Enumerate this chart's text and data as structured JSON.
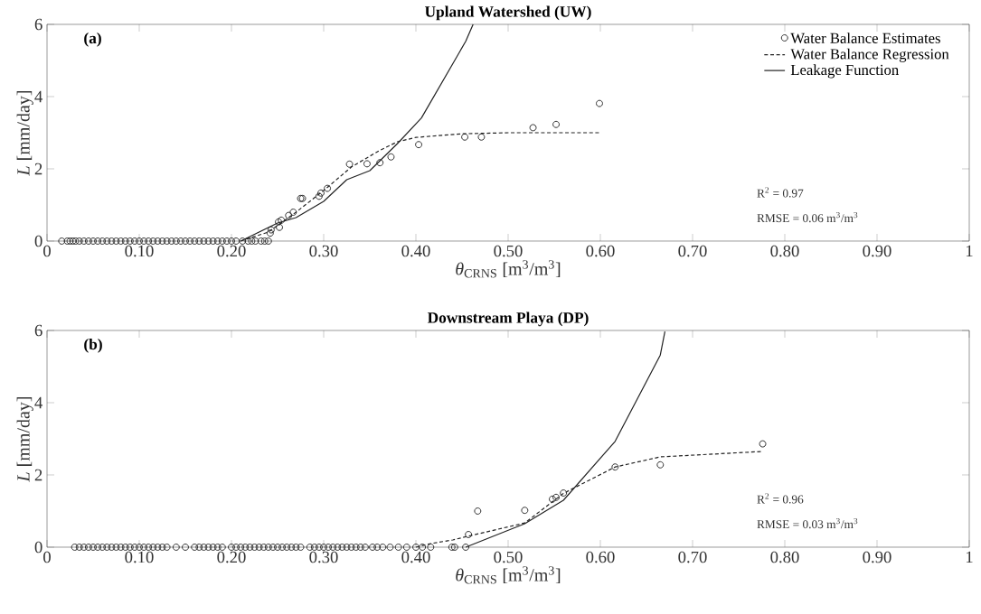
{
  "chart_data": [
    {
      "type": "scatter",
      "title": "Upland Watershed (UW)",
      "xlabel": "*θ*$_{CRNS}$ [m$^{3}$/m$^{3}$]",
      "ylabel": "*L* [mm/day]",
      "xlim": [
        0,
        1
      ],
      "ylim": [
        0,
        6
      ],
      "xticks": [
        0,
        {
          "value": 0.1,
          "label": "0.10"
        },
        {
          "value": 0.2,
          "label": "0.20"
        },
        {
          "value": 0.3,
          "label": "0.30"
        },
        {
          "value": 0.4,
          "label": "0.40"
        },
        {
          "value": 0.5,
          "label": "0.50"
        },
        {
          "value": 0.6,
          "label": "0.60"
        },
        {
          "value": 0.7,
          "label": "0.70"
        },
        {
          "value": 0.8,
          "label": "0.80"
        },
        {
          "value": 0.9,
          "label": "0.90"
        },
        1
      ],
      "yticks": [
        0,
        2,
        4,
        6
      ],
      "legend": "top right",
      "annotations": [
        "(a)",
        "R$^{2}$ = 0.97",
        "RMSE = 0.06 m$^{3}$/m$^{3}$"
      ],
      "series": [
        {
          "name": "Water Balance Estimates",
          "type": "scatter",
          "marker": "circle",
          "color": "#222222",
          "x": [
            0.016,
            0.022,
            0.025,
            0.028,
            0.031,
            0.035,
            0.04,
            0.045,
            0.05,
            0.055,
            0.06,
            0.065,
            0.07,
            0.075,
            0.08,
            0.085,
            0.09,
            0.095,
            0.1,
            0.105,
            0.11,
            0.115,
            0.12,
            0.125,
            0.13,
            0.135,
            0.14,
            0.145,
            0.15,
            0.155,
            0.16,
            0.165,
            0.17,
            0.175,
            0.18,
            0.185,
            0.19,
            0.195,
            0.2,
            0.205,
            0.212,
            0.218,
            0.222,
            0.226,
            0.232,
            0.236,
            0.24,
            0.242,
            0.243,
            0.252,
            0.251,
            0.254,
            0.262,
            0.267,
            0.275,
            0.277,
            0.295,
            0.297,
            0.304,
            0.328,
            0.347,
            0.361,
            0.373,
            0.403,
            0.453,
            0.471,
            0.527,
            0.552,
            0.599
          ],
          "values": [
            0,
            0,
            0,
            0,
            0,
            0,
            0,
            0,
            0,
            0,
            0,
            0,
            0,
            0,
            0,
            0,
            0,
            0,
            0,
            0,
            0,
            0,
            0,
            0,
            0,
            0,
            0,
            0,
            0,
            0,
            0,
            0,
            0,
            0,
            0,
            0,
            0,
            0,
            0,
            0,
            0,
            0,
            0,
            0,
            0,
            0,
            0,
            0.22,
            0.31,
            0.38,
            0.53,
            0.58,
            0.71,
            0.8,
            1.18,
            1.18,
            1.24,
            1.33,
            1.46,
            2.13,
            2.14,
            2.17,
            2.33,
            2.67,
            2.88,
            2.88,
            3.14,
            3.23,
            3.81
          ]
        },
        {
          "name": "Water Balance Regression",
          "type": "line",
          "marker": "none",
          "line_style": "dashed",
          "color": "#222222",
          "x": [
            0.21,
            0.24,
            0.27,
            0.3,
            0.33,
            0.36,
            0.38,
            0.4,
            0.45,
            0.5,
            0.6
          ],
          "values": [
            0,
            0.25,
            0.8,
            1.4,
            2.05,
            2.5,
            2.75,
            2.87,
            2.97,
            3.0,
            3.0
          ]
        },
        {
          "name": "Leakage Function",
          "type": "line",
          "marker": "none",
          "line_style": "solid",
          "color": "#222222",
          "x": [
            0.21,
            0.25,
            0.27,
            0.3,
            0.325,
            0.35,
            0.38,
            0.406,
            0.454,
            0.462
          ],
          "values": [
            0,
            0.5,
            0.65,
            1.1,
            1.7,
            1.95,
            2.7,
            3.41,
            5.53,
            6.0
          ]
        }
      ]
    },
    {
      "type": "scatter",
      "title": "Downstream Playa (DP)",
      "xlabel": "*θ*$_{CRNS}$ [m$^{3}$/m$^{3}$]",
      "ylabel": "*L* [mm/day]",
      "xlim": [
        0,
        1
      ],
      "ylim": [
        0,
        6
      ],
      "xticks": [
        0,
        {
          "value": 0.1,
          "label": "0.10"
        },
        {
          "value": 0.2,
          "label": "0.20"
        },
        {
          "value": 0.3,
          "label": "0.30"
        },
        {
          "value": 0.4,
          "label": "0.40"
        },
        {
          "value": 0.5,
          "label": "0.50"
        },
        {
          "value": 0.6,
          "label": "0.60"
        },
        {
          "value": 0.7,
          "label": "0.70"
        },
        {
          "value": 0.8,
          "label": "0.80"
        },
        {
          "value": 0.9,
          "label": "0.90"
        },
        1
      ],
      "yticks": [
        0,
        2,
        4,
        6
      ],
      "annotations": [
        "(b)",
        "R$^{2}$ = 0.96",
        "RMSE = 0.03 m$^{3}$/m$^{3}$"
      ],
      "series": [
        {
          "type": "scatter",
          "marker": "circle",
          "color": "#222222",
          "x": [
            0.03,
            0.035,
            0.04,
            0.045,
            0.05,
            0.055,
            0.06,
            0.065,
            0.07,
            0.075,
            0.08,
            0.085,
            0.09,
            0.095,
            0.1,
            0.105,
            0.11,
            0.115,
            0.12,
            0.125,
            0.13,
            0.14,
            0.15,
            0.16,
            0.165,
            0.17,
            0.175,
            0.18,
            0.185,
            0.19,
            0.2,
            0.205,
            0.21,
            0.215,
            0.22,
            0.225,
            0.23,
            0.235,
            0.24,
            0.245,
            0.25,
            0.255,
            0.26,
            0.265,
            0.27,
            0.275,
            0.285,
            0.29,
            0.295,
            0.3,
            0.305,
            0.31,
            0.315,
            0.32,
            0.325,
            0.33,
            0.335,
            0.34,
            0.345,
            0.353,
            0.358,
            0.364,
            0.372,
            0.381,
            0.39,
            0.4,
            0.407,
            0.416,
            0.439,
            0.442,
            0.454,
            0.457,
            0.467,
            0.518,
            0.548,
            0.552,
            0.56,
            0.616,
            0.665,
            0.776
          ],
          "values": [
            0,
            0,
            0,
            0,
            0,
            0,
            0,
            0,
            0,
            0,
            0,
            0,
            0,
            0,
            0,
            0,
            0,
            0,
            0,
            0,
            0,
            0,
            0,
            0,
            0,
            0,
            0,
            0,
            0,
            0,
            0,
            0,
            0,
            0,
            0,
            0,
            0,
            0,
            0,
            0,
            0,
            0,
            0,
            0,
            0,
            0,
            0,
            0,
            0,
            0,
            0,
            0,
            0,
            0,
            0,
            0,
            0,
            0,
            0,
            0,
            0,
            0,
            0,
            0,
            0,
            0,
            0,
            0,
            0,
            0,
            0,
            0.35,
            1.0,
            1.02,
            1.33,
            1.38,
            1.5,
            2.22,
            2.28,
            2.86
          ]
        },
        {
          "type": "line",
          "marker": "none",
          "line_style": "dashed",
          "color": "#222222",
          "x": [
            0.4,
            0.416,
            0.44,
            0.456,
            0.518,
            0.56,
            0.616,
            0.665,
            0.776
          ],
          "values": [
            0,
            0.1,
            0.2,
            0.3,
            0.67,
            1.49,
            2.22,
            2.5,
            2.65
          ]
        },
        {
          "type": "line",
          "marker": "none",
          "line_style": "solid",
          "color": "#222222",
          "x": [
            0.454,
            0.518,
            0.56,
            0.616,
            0.665,
            0.67
          ],
          "values": [
            0,
            0.65,
            1.3,
            2.93,
            5.32,
            5.97
          ]
        }
      ]
    }
  ]
}
